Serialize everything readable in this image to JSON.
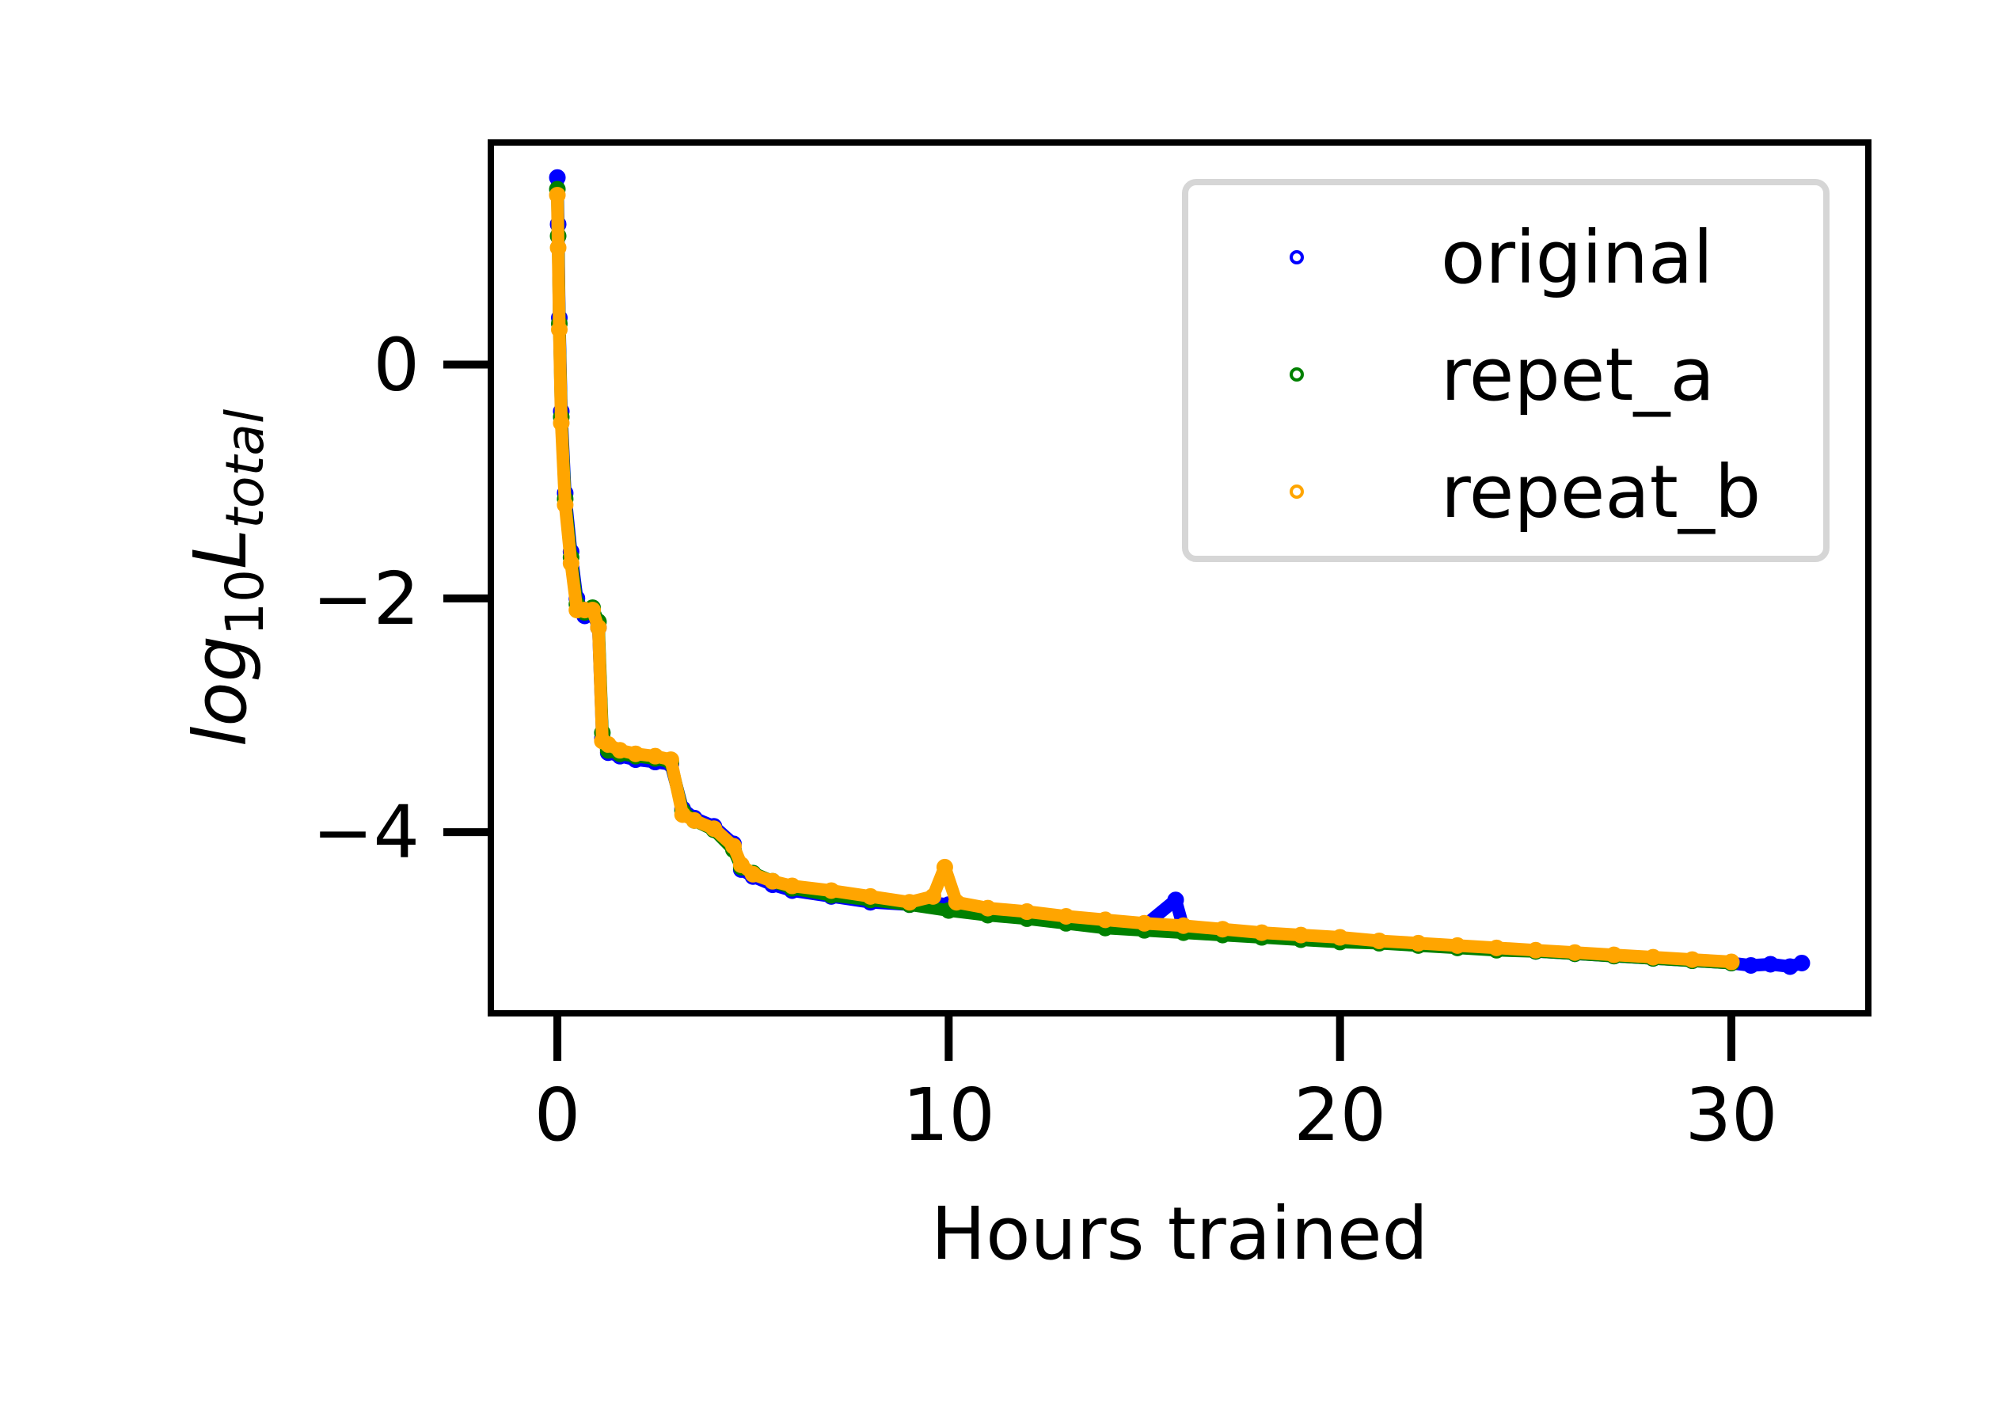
{
  "chart_data": {
    "type": "scatter",
    "xlabel": "Hours trained",
    "ylabel": {
      "base": "log",
      "subscript": "10",
      "var": "L",
      "var_subscript": "total"
    },
    "xlim": [
      -1.7,
      33.5
    ],
    "ylim": [
      -5.55,
      1.9
    ],
    "xticks": [
      0,
      10,
      20,
      30
    ],
    "xtick_labels": [
      "0",
      "10",
      "20",
      "30"
    ],
    "yticks": [
      -4,
      -2,
      0
    ],
    "ytick_labels": [
      "−4",
      "−2",
      "0"
    ],
    "legend_position": "upper right",
    "series": [
      {
        "name": "original",
        "color": "#0000ff",
        "x": [
          0,
          0.02,
          0.05,
          0.1,
          0.2,
          0.35,
          0.5,
          0.7,
          0.9,
          1.05,
          1.15,
          1.3,
          1.6,
          2.0,
          2.5,
          2.9,
          3.2,
          3.5,
          4.0,
          4.5,
          4.7,
          5.0,
          5.5,
          6.0,
          7.0,
          8.0,
          9.0,
          9.5,
          10.0,
          11.0,
          12.0,
          13.0,
          14.0,
          15.0,
          15.8,
          16.0,
          17.0,
          18.0,
          19.0,
          20.0,
          21.0,
          22.0,
          23.0,
          24.0,
          25.0,
          26.0,
          27.0,
          28.0,
          29.0,
          30.0,
          30.5,
          31.0,
          31.5,
          31.8
        ],
        "y": [
          1.6,
          1.2,
          0.4,
          -0.4,
          -1.1,
          -1.6,
          -2.0,
          -2.15,
          -2.12,
          -2.25,
          -3.2,
          -3.32,
          -3.35,
          -3.38,
          -3.4,
          -3.42,
          -3.8,
          -3.88,
          -3.95,
          -4.1,
          -4.32,
          -4.38,
          -4.45,
          -4.5,
          -4.55,
          -4.6,
          -4.62,
          -4.6,
          -4.62,
          -4.66,
          -4.7,
          -4.74,
          -4.78,
          -4.8,
          -4.58,
          -4.82,
          -4.85,
          -4.88,
          -4.9,
          -4.92,
          -4.94,
          -4.96,
          -4.98,
          -5.0,
          -5.02,
          -5.04,
          -5.06,
          -5.08,
          -5.1,
          -5.12,
          -5.14,
          -5.13,
          -5.15,
          -5.12
        ]
      },
      {
        "name": "repet_a",
        "color": "#008000",
        "x": [
          0,
          0.02,
          0.05,
          0.1,
          0.2,
          0.35,
          0.5,
          0.7,
          0.9,
          1.05,
          1.15,
          1.3,
          1.6,
          2.0,
          2.5,
          2.9,
          3.2,
          3.5,
          4.0,
          4.5,
          4.7,
          5.0,
          5.5,
          6.0,
          7.0,
          8.0,
          9.0,
          10.0,
          11.0,
          12.0,
          13.0,
          14.0,
          15.0,
          16.0,
          17.0,
          18.0,
          19.0,
          20.0,
          21.0,
          22.0,
          23.0,
          24.0,
          25.0,
          26.0,
          27.0,
          28.0,
          29.0,
          30.0
        ],
        "y": [
          1.5,
          1.1,
          0.35,
          -0.45,
          -1.15,
          -1.65,
          -2.05,
          -2.12,
          -2.08,
          -2.2,
          -3.15,
          -3.3,
          -3.33,
          -3.35,
          -3.37,
          -3.4,
          -3.82,
          -3.9,
          -3.98,
          -4.15,
          -4.3,
          -4.35,
          -4.42,
          -4.48,
          -4.54,
          -4.58,
          -4.62,
          -4.67,
          -4.71,
          -4.74,
          -4.78,
          -4.82,
          -4.84,
          -4.86,
          -4.88,
          -4.9,
          -4.92,
          -4.94,
          -4.95,
          -4.97,
          -4.99,
          -5.01,
          -5.02,
          -5.04,
          -5.06,
          -5.08,
          -5.1,
          -5.12
        ]
      },
      {
        "name": "repeat_b",
        "color": "#ffa500",
        "x": [
          0,
          0.02,
          0.05,
          0.1,
          0.2,
          0.35,
          0.5,
          0.7,
          0.9,
          1.05,
          1.15,
          1.3,
          1.6,
          2.0,
          2.5,
          2.9,
          3.2,
          3.5,
          4.0,
          4.5,
          4.7,
          5.0,
          5.5,
          6.0,
          7.0,
          8.0,
          9.0,
          9.6,
          9.9,
          10.2,
          11.0,
          12.0,
          13.0,
          14.0,
          15.0,
          16.0,
          17.0,
          18.0,
          19.0,
          20.0,
          21.0,
          22.0,
          23.0,
          24.0,
          25.0,
          26.0,
          27.0,
          28.0,
          29.0,
          30.0
        ],
        "y": [
          1.45,
          1.0,
          0.3,
          -0.5,
          -1.2,
          -1.7,
          -2.1,
          -2.1,
          -2.1,
          -2.25,
          -3.22,
          -3.25,
          -3.3,
          -3.33,
          -3.35,
          -3.38,
          -3.85,
          -3.9,
          -3.97,
          -4.12,
          -4.28,
          -4.36,
          -4.42,
          -4.46,
          -4.5,
          -4.55,
          -4.6,
          -4.55,
          -4.3,
          -4.6,
          -4.65,
          -4.68,
          -4.72,
          -4.75,
          -4.78,
          -4.8,
          -4.83,
          -4.86,
          -4.88,
          -4.9,
          -4.93,
          -4.95,
          -4.97,
          -4.99,
          -5.01,
          -5.03,
          -5.05,
          -5.07,
          -5.09,
          -5.11
        ]
      }
    ]
  }
}
